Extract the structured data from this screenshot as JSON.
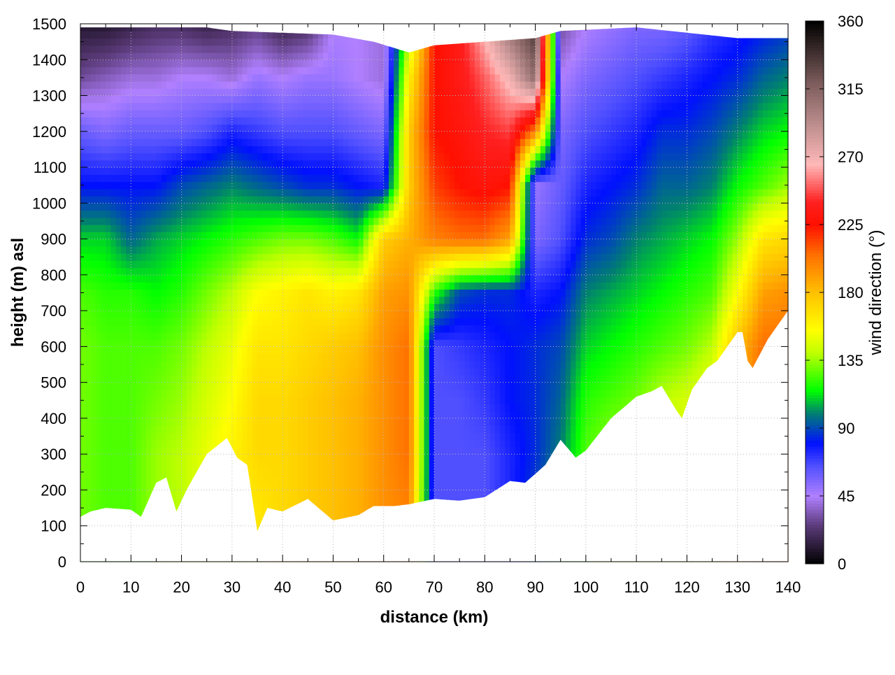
{
  "chart_data": {
    "type": "heatmap",
    "xlabel": "distance (km)",
    "ylabel": "height (m) asl",
    "colorbar_label": "wind direction (°)",
    "xlim": [
      0,
      140
    ],
    "ylim": [
      0,
      1500
    ],
    "clim": [
      0,
      360
    ],
    "grid": true,
    "x_ticks": [
      "0",
      "10",
      "20",
      "30",
      "40",
      "50",
      "60",
      "70",
      "80",
      "90",
      "100",
      "110",
      "120",
      "130",
      "140"
    ],
    "y_ticks": [
      "0",
      "100",
      "200",
      "300",
      "400",
      "500",
      "600",
      "700",
      "800",
      "900",
      "1000",
      "1100",
      "1200",
      "1300",
      "1400",
      "1500"
    ],
    "colorbar_ticks": [
      "0",
      "45",
      "90",
      "135",
      "180",
      "225",
      "270",
      "315",
      "360"
    ],
    "colormap": [
      {
        "v": 0,
        "c": "#000000"
      },
      {
        "v": 25,
        "c": "#5a3a78"
      },
      {
        "v": 45,
        "c": "#b080ff"
      },
      {
        "v": 65,
        "c": "#5050ff"
      },
      {
        "v": 80,
        "c": "#0010ff"
      },
      {
        "v": 100,
        "c": "#008070"
      },
      {
        "v": 115,
        "c": "#00ff00"
      },
      {
        "v": 140,
        "c": "#c0ff00"
      },
      {
        "v": 155,
        "c": "#ffff00"
      },
      {
        "v": 180,
        "c": "#ffc000"
      },
      {
        "v": 205,
        "c": "#ff7000"
      },
      {
        "v": 225,
        "c": "#ff1000"
      },
      {
        "v": 240,
        "c": "#ff2020"
      },
      {
        "v": 265,
        "c": "#ffb8b8"
      },
      {
        "v": 290,
        "c": "#c09090"
      },
      {
        "v": 320,
        "c": "#7a5a5a"
      },
      {
        "v": 360,
        "c": "#000000"
      }
    ],
    "heights": [
      150,
      300,
      450,
      600,
      750,
      900,
      1050,
      1200,
      1350,
      1500
    ],
    "distances": [
      0,
      5,
      10,
      15,
      20,
      25,
      30,
      35,
      40,
      45,
      50,
      55,
      60,
      65,
      70,
      75,
      80,
      85,
      90,
      95,
      100,
      105,
      110,
      115,
      120,
      125,
      130,
      135,
      140
    ],
    "wind_direction": [
      [
        130,
        130,
        130,
        130,
        125,
        110,
        80,
        60,
        30,
        10
      ],
      [
        125,
        125,
        125,
        125,
        120,
        110,
        80,
        55,
        35,
        10
      ],
      [
        125,
        125,
        125,
        125,
        120,
        95,
        80,
        60,
        40,
        15
      ],
      [
        135,
        135,
        130,
        125,
        115,
        105,
        80,
        60,
        40,
        20
      ],
      [
        140,
        140,
        135,
        130,
        120,
        110,
        90,
        60,
        45,
        20
      ],
      [
        150,
        150,
        145,
        140,
        130,
        115,
        95,
        65,
        45,
        15
      ],
      [
        160,
        160,
        155,
        150,
        140,
        120,
        100,
        75,
        40,
        20
      ],
      [
        165,
        170,
        170,
        165,
        155,
        125,
        95,
        70,
        50,
        25
      ],
      [
        170,
        170,
        170,
        165,
        160,
        130,
        90,
        65,
        45,
        15
      ],
      [
        175,
        175,
        175,
        170,
        165,
        130,
        85,
        65,
        50,
        20
      ],
      [
        180,
        180,
        180,
        175,
        160,
        125,
        85,
        65,
        50,
        45
      ],
      [
        185,
        185,
        185,
        180,
        165,
        115,
        80,
        60,
        45,
        45
      ],
      [
        195,
        195,
        195,
        195,
        190,
        175,
        75,
        55,
        40,
        40
      ],
      [
        200,
        205,
        205,
        205,
        195,
        185,
        175,
        175,
        160,
        130
      ],
      [
        65,
        65,
        65,
        65,
        120,
        200,
        215,
        225,
        225,
        225
      ],
      [
        65,
        65,
        65,
        70,
        90,
        205,
        225,
        230,
        235,
        235
      ],
      [
        65,
        65,
        70,
        75,
        85,
        205,
        230,
        240,
        250,
        270
      ],
      [
        75,
        75,
        80,
        80,
        85,
        190,
        225,
        245,
        270,
        310
      ],
      [
        90,
        85,
        85,
        85,
        75,
        55,
        50,
        200,
        310,
        340
      ],
      [
        110,
        100,
        95,
        90,
        80,
        65,
        60,
        55,
        45,
        30
      ],
      [
        130,
        125,
        120,
        110,
        100,
        85,
        75,
        65,
        55,
        45
      ],
      [
        140,
        135,
        125,
        115,
        105,
        90,
        80,
        70,
        60,
        50
      ],
      [
        140,
        135,
        130,
        120,
        110,
        100,
        85,
        75,
        65,
        55
      ],
      [
        150,
        145,
        140,
        125,
        115,
        105,
        95,
        85,
        70,
        55
      ],
      [
        150,
        150,
        145,
        130,
        120,
        110,
        95,
        85,
        75,
        60
      ],
      [
        160,
        160,
        155,
        140,
        125,
        115,
        100,
        90,
        80,
        70
      ],
      [
        175,
        175,
        185,
        180,
        155,
        135,
        115,
        100,
        85,
        75
      ],
      [
        210,
        210,
        210,
        205,
        190,
        165,
        125,
        110,
        95,
        80
      ],
      [
        210,
        210,
        210,
        205,
        195,
        170,
        135,
        115,
        100,
        85
      ]
    ],
    "terrain": [
      [
        0,
        125
      ],
      [
        2,
        140
      ],
      [
        5,
        150
      ],
      [
        10,
        145
      ],
      [
        12,
        125
      ],
      [
        15,
        220
      ],
      [
        17,
        235
      ],
      [
        19,
        140
      ],
      [
        21,
        200
      ],
      [
        25,
        300
      ],
      [
        29,
        345
      ],
      [
        31,
        290
      ],
      [
        33,
        270
      ],
      [
        35,
        85
      ],
      [
        37,
        150
      ],
      [
        40,
        140
      ],
      [
        45,
        175
      ],
      [
        50,
        115
      ],
      [
        55,
        130
      ],
      [
        58,
        155
      ],
      [
        62,
        155
      ],
      [
        65,
        160
      ],
      [
        70,
        175
      ],
      [
        75,
        170
      ],
      [
        80,
        180
      ],
      [
        85,
        225
      ],
      [
        88,
        220
      ],
      [
        92,
        270
      ],
      [
        95,
        340
      ],
      [
        98,
        290
      ],
      [
        100,
        310
      ],
      [
        105,
        400
      ],
      [
        110,
        460
      ],
      [
        113,
        475
      ],
      [
        115,
        490
      ],
      [
        118,
        420
      ],
      [
        119,
        400
      ],
      [
        121,
        480
      ],
      [
        124,
        540
      ],
      [
        126,
        560
      ],
      [
        128,
        600
      ],
      [
        130,
        640
      ],
      [
        131,
        640
      ],
      [
        132,
        560
      ],
      [
        133,
        540
      ],
      [
        136,
        620
      ],
      [
        140,
        700
      ]
    ],
    "data_top": [
      [
        0,
        1490
      ],
      [
        25,
        1490
      ],
      [
        30,
        1480
      ],
      [
        50,
        1470
      ],
      [
        58,
        1450
      ],
      [
        65,
        1420
      ],
      [
        70,
        1440
      ],
      [
        80,
        1450
      ],
      [
        90,
        1460
      ],
      [
        95,
        1480
      ],
      [
        110,
        1490
      ],
      [
        130,
        1460
      ],
      [
        140,
        1460
      ]
    ]
  }
}
